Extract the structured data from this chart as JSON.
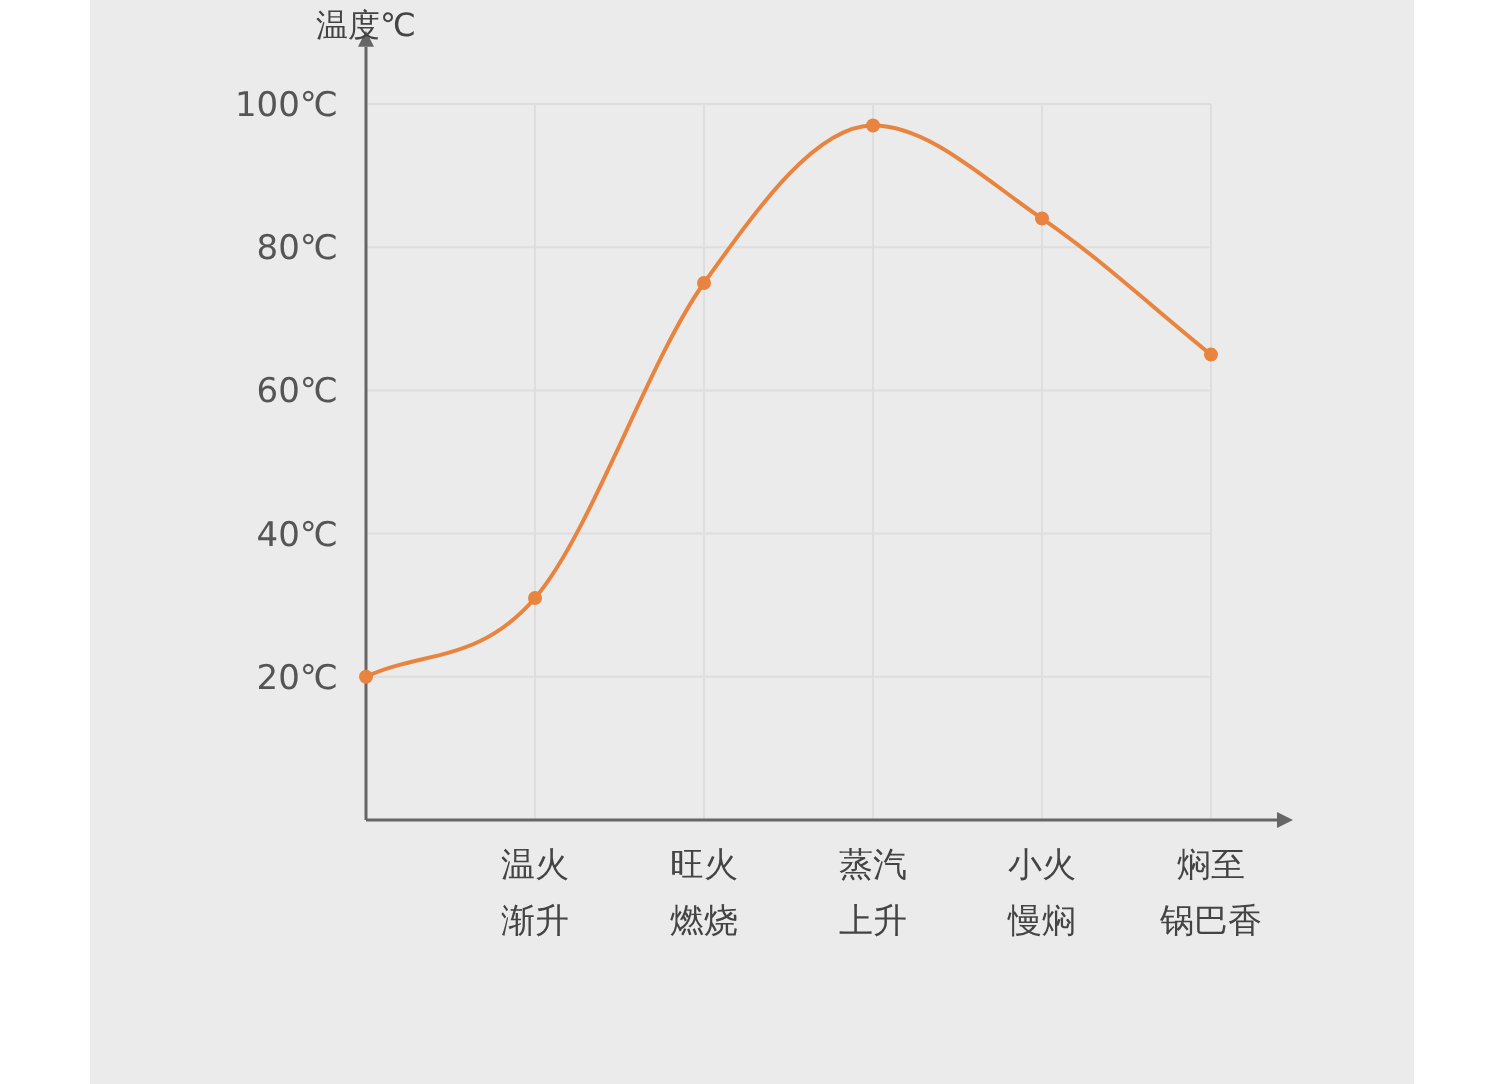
{
  "chart_data": {
    "type": "line",
    "ylabel": "温度℃",
    "categories": [
      null,
      "温火渐升",
      "旺火燃烧",
      "蒸汽上升",
      "小火慢焖",
      "焖至锅巴香"
    ],
    "series": [
      {
        "color": "#e8843f",
        "values": [
          20,
          31,
          75,
          97,
          84,
          65
        ]
      }
    ],
    "ylim": [
      0,
      108
    ],
    "yticks": [
      {
        "value": 20,
        "label": "20℃"
      },
      {
        "value": 40,
        "label": "40℃"
      },
      {
        "value": 60,
        "label": "60℃"
      },
      {
        "value": 80,
        "label": "80℃"
      },
      {
        "value": 100,
        "label": "100℃"
      }
    ],
    "grid": true,
    "marker": "circle",
    "line_style": "solid"
  }
}
